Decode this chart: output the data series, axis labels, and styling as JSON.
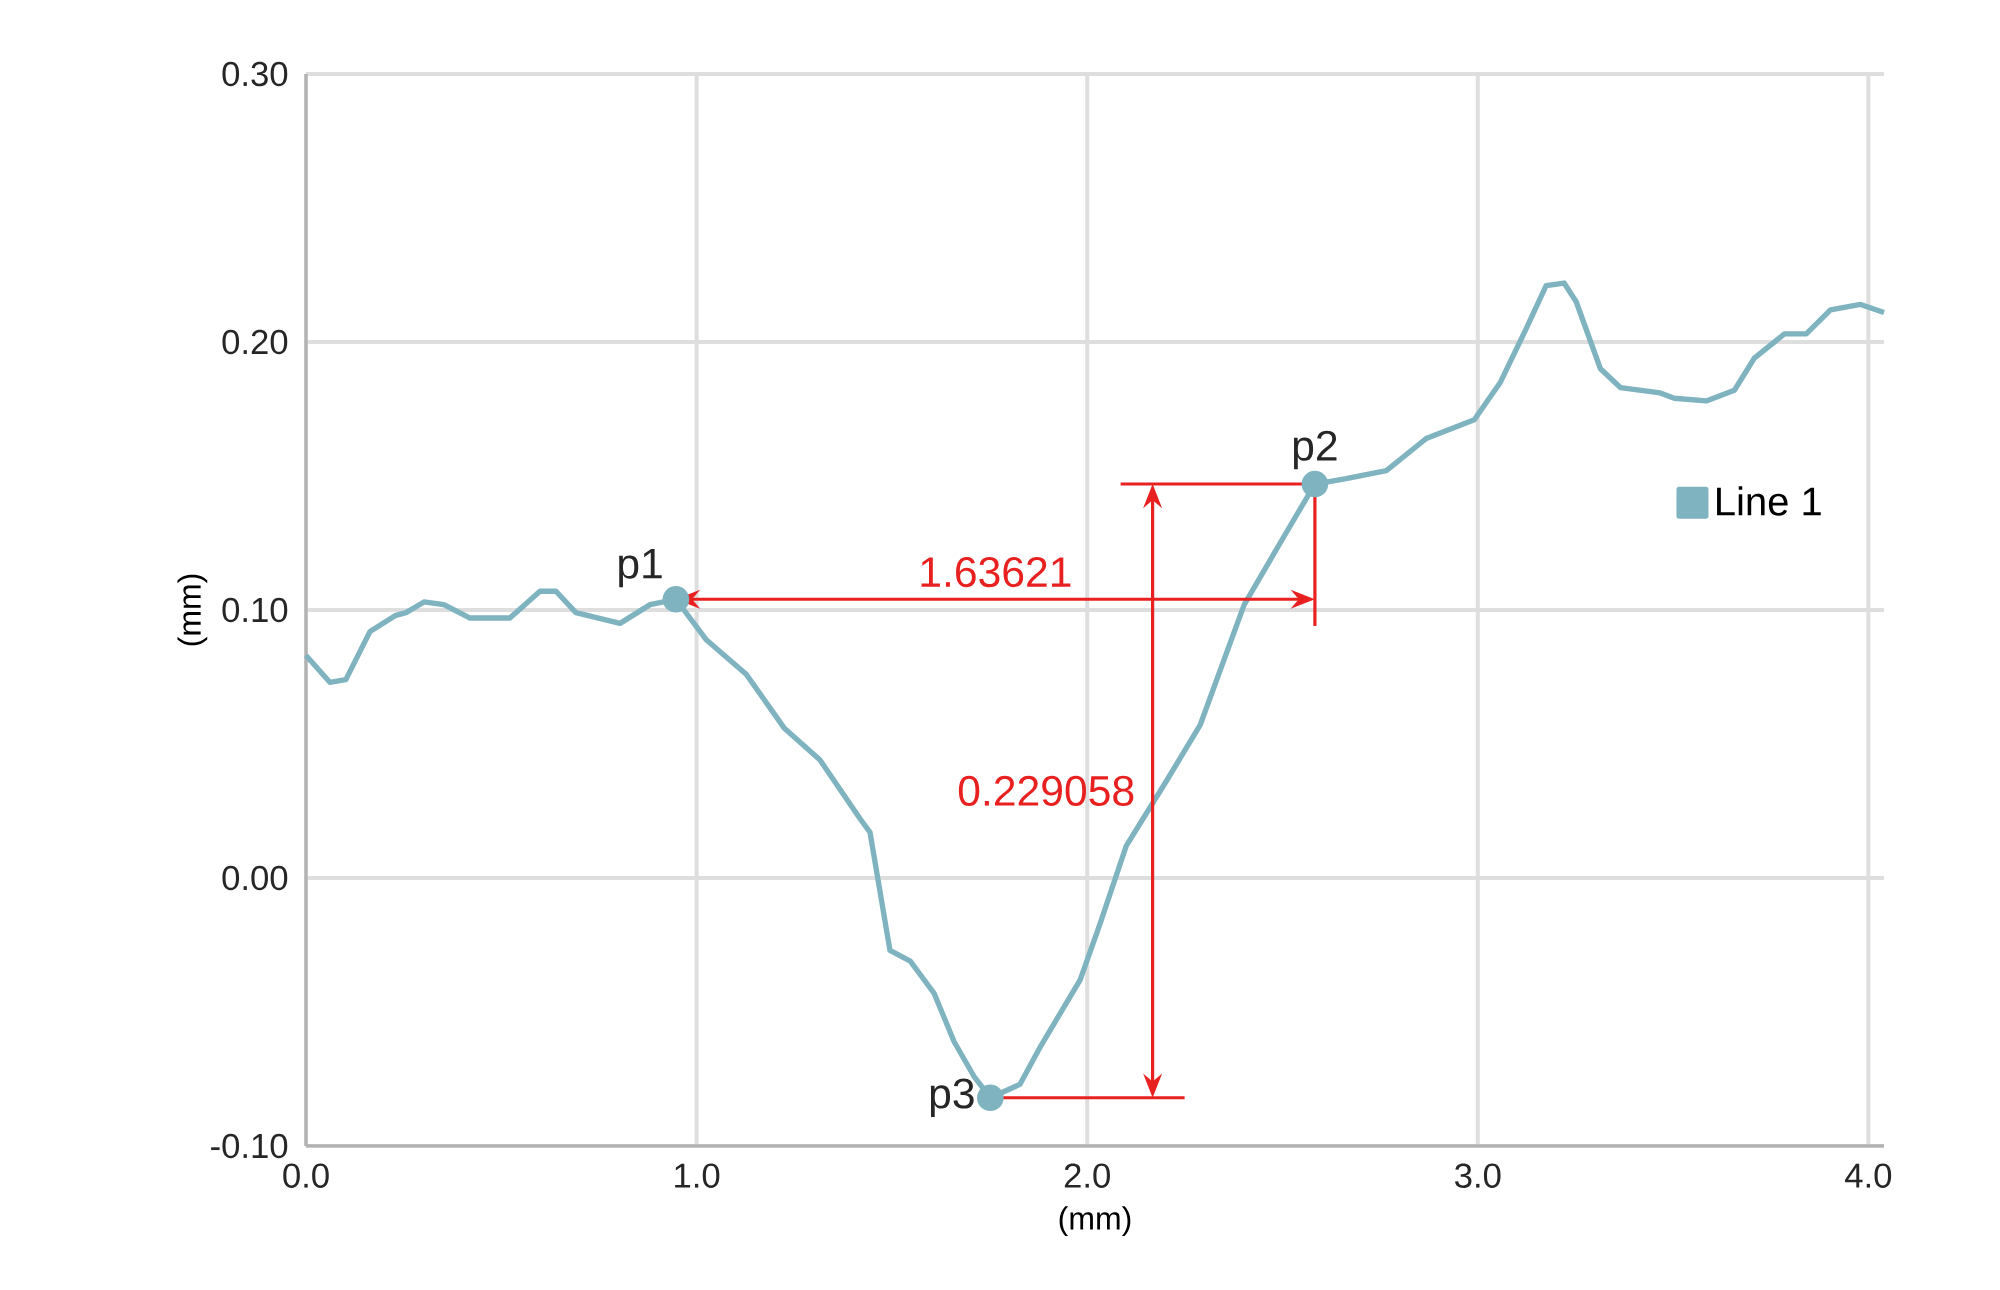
{
  "chart_data": {
    "type": "line",
    "xlabel": "(mm)",
    "ylabel": "(mm)",
    "x": [
      0,
      0.061,
      0.102,
      0.164,
      0.23,
      0.256,
      0.302,
      0.353,
      0.42,
      0.522,
      0.599,
      0.64,
      0.691,
      0.804,
      0.881,
      0.947,
      1.024,
      1.127,
      1.224,
      1.316,
      1.419,
      1.444,
      1.495,
      1.547,
      1.608,
      1.659,
      1.71,
      1.752,
      1.828,
      1.88,
      1.982,
      2.033,
      2.1,
      2.202,
      2.289,
      2.402,
      2.494,
      2.583,
      2.663,
      2.766,
      2.868,
      2.991,
      3.058,
      3.124,
      3.175,
      3.221,
      3.252,
      3.314,
      3.365,
      3.467,
      3.503,
      3.585,
      3.657,
      3.708,
      3.785,
      3.841,
      3.903,
      3.98,
      4.04
    ],
    "series": [
      {
        "name": "Line 1",
        "color": "#7fb3c0",
        "values": [
          0.083,
          0.073,
          0.074,
          0.092,
          0.098,
          0.099,
          0.103,
          0.102,
          0.097,
          0.097,
          0.107,
          0.107,
          0.099,
          0.095,
          0.102,
          0.104,
          0.089,
          0.076,
          0.056,
          0.044,
          0.022,
          0.017,
          -0.027,
          -0.031,
          -0.043,
          -0.061,
          -0.074,
          -0.082,
          -0.077,
          -0.063,
          -0.038,
          -0.017,
          0.012,
          0.036,
          0.057,
          0.102,
          0.125,
          0.147,
          0.149,
          0.152,
          0.164,
          0.171,
          0.185,
          0.205,
          0.221,
          0.222,
          0.215,
          0.19,
          0.183,
          0.181,
          0.179,
          0.178,
          0.182,
          0.194,
          0.203,
          0.203,
          0.212,
          0.214,
          0.211
        ]
      }
    ],
    "xlim": [
      0,
      4.04
    ],
    "ylim": [
      -0.1,
      0.3
    ],
    "xticks": [
      {
        "value": 0,
        "label": "0.0"
      },
      {
        "value": 1,
        "label": "1.0"
      },
      {
        "value": 2,
        "label": "2.0"
      },
      {
        "value": 3,
        "label": "3.0"
      },
      {
        "value": 4,
        "label": "4.0"
      }
    ],
    "yticks": [
      {
        "value": -0.1,
        "label": "-0.10"
      },
      {
        "value": 0,
        "label": "0.00"
      },
      {
        "value": 0.1,
        "label": "0.10"
      },
      {
        "value": 0.2,
        "label": "0.20"
      },
      {
        "value": 0.3,
        "label": "0.30"
      }
    ],
    "grid": true,
    "legend": "right",
    "marker": "none",
    "line_style": "solid",
    "annotations": [
      {
        "text": "p1",
        "x": 0.947,
        "y": 0.104
      },
      {
        "text": "p2",
        "x": 2.583,
        "y": 0.147
      },
      {
        "text": "p3",
        "x": 1.752,
        "y": -0.082
      },
      "1.63621",
      "0.229058"
    ]
  }
}
